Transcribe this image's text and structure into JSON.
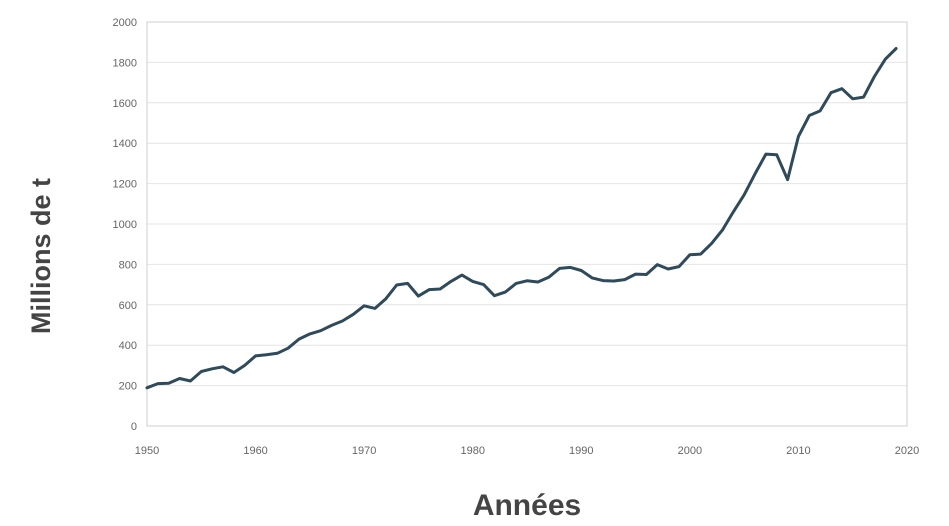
{
  "chart_data": {
    "type": "line",
    "title": "",
    "xlabel": "Années",
    "ylabel": "Millions de t",
    "xlim": [
      1950,
      2020
    ],
    "ylim": [
      0,
      2000
    ],
    "x_ticks": [
      "1950",
      "1960",
      "1970",
      "1980",
      "1990",
      "2000",
      "2010",
      "2020"
    ],
    "y_ticks": [
      "0",
      "200",
      "400",
      "600",
      "800",
      "1000",
      "1200",
      "1400",
      "1600",
      "1800",
      "2000"
    ],
    "grid": true,
    "legend": "none",
    "colors": {
      "line": "#2f4a5a"
    },
    "series": [
      {
        "name": "",
        "x": [
          1950,
          1951,
          1952,
          1953,
          1954,
          1955,
          1956,
          1957,
          1958,
          1959,
          1960,
          1961,
          1962,
          1963,
          1964,
          1965,
          1966,
          1967,
          1968,
          1969,
          1970,
          1971,
          1972,
          1973,
          1974,
          1975,
          1976,
          1977,
          1978,
          1979,
          1980,
          1981,
          1982,
          1983,
          1984,
          1985,
          1986,
          1987,
          1988,
          1989,
          1990,
          1991,
          1992,
          1993,
          1994,
          1995,
          1996,
          1997,
          1998,
          1999,
          2000,
          2001,
          2002,
          2003,
          2004,
          2005,
          2006,
          2007,
          2008,
          2009,
          2010,
          2011,
          2012,
          2013,
          2014,
          2015,
          2016,
          2017,
          2018,
          2019
        ],
        "y": [
          189,
          210,
          212,
          235,
          223,
          270,
          283,
          293,
          265,
          300,
          347,
          353,
          360,
          385,
          430,
          456,
          472,
          498,
          520,
          553,
          595,
          582,
          630,
          698,
          706,
          643,
          675,
          678,
          716,
          747,
          716,
          700,
          645,
          663,
          706,
          719,
          713,
          736,
          780,
          785,
          770,
          733,
          720,
          718,
          725,
          752,
          750,
          799,
          777,
          789,
          848,
          851,
          904,
          970,
          1060,
          1144,
          1248,
          1346,
          1343,
          1220,
          1433,
          1537,
          1560,
          1650,
          1670,
          1620,
          1628,
          1730,
          1816,
          1869
        ]
      }
    ]
  }
}
